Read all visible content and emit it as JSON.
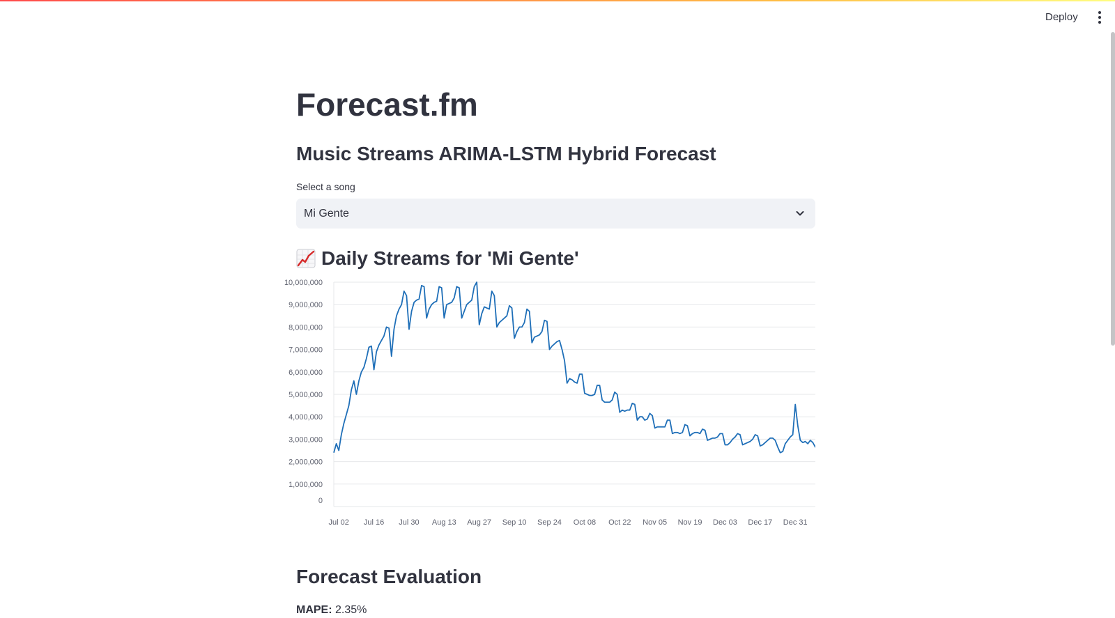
{
  "header": {
    "deploy_label": "Deploy",
    "menu_icon": "vertical-ellipsis-icon"
  },
  "app": {
    "title": "Forecast.fm",
    "subtitle": "Music Streams ARIMA-LSTM Hybrid Forecast"
  },
  "song_select": {
    "label": "Select a song",
    "value": "Mi Gente",
    "icon": "chevron-down-icon"
  },
  "chart_section": {
    "icon": "chart-increasing-icon",
    "title": "Daily Streams for 'Mi Gente'"
  },
  "evaluation": {
    "title": "Forecast Evaluation",
    "mape_label": "MAPE:",
    "mape_value": "2.35%"
  },
  "colors": {
    "line": "#1f6fb8",
    "accent_top": "#ff4b4b"
  },
  "chart_data": {
    "type": "line",
    "title": "Daily Streams for 'Mi Gente'",
    "xlabel": "",
    "ylabel": "",
    "ylim": [
      0,
      10000000
    ],
    "y_ticks": [
      0,
      1000000,
      2000000,
      3000000,
      4000000,
      5000000,
      6000000,
      7000000,
      8000000,
      9000000,
      10000000
    ],
    "y_tick_labels": [
      "0",
      "1,000,000",
      "2,000,000",
      "3,000,000",
      "4,000,000",
      "5,000,000",
      "6,000,000",
      "7,000,000",
      "8,000,000",
      "9,000,000",
      "10,000,000"
    ],
    "x_range": [
      "2017-06-30",
      "2018-01-08"
    ],
    "x_ticks": [
      "2017-07-02",
      "2017-07-16",
      "2017-07-30",
      "2017-08-13",
      "2017-08-27",
      "2017-09-10",
      "2017-09-24",
      "2017-10-08",
      "2017-10-22",
      "2017-11-05",
      "2017-11-19",
      "2017-12-03",
      "2017-12-17",
      "2017-12-31"
    ],
    "x_tick_labels": [
      "Jul 02",
      "Jul 16",
      "Jul 30",
      "Aug 13",
      "Aug 27",
      "Sep 10",
      "Sep 24",
      "Oct 08",
      "Oct 22",
      "Nov 05",
      "Nov 19",
      "Dec 03",
      "Dec 17",
      "Dec 31"
    ],
    "grid": true,
    "series": [
      {
        "points": [
          [
            "2017-06-30",
            2400000
          ],
          [
            "2017-07-01",
            2800000
          ],
          [
            "2017-07-02",
            2500000
          ],
          [
            "2017-07-03",
            3200000
          ],
          [
            "2017-07-04",
            3700000
          ],
          [
            "2017-07-05",
            4100000
          ],
          [
            "2017-07-06",
            4500000
          ],
          [
            "2017-07-07",
            5200000
          ],
          [
            "2017-07-08",
            5600000
          ],
          [
            "2017-07-09",
            5000000
          ],
          [
            "2017-07-10",
            5600000
          ],
          [
            "2017-07-11",
            6000000
          ],
          [
            "2017-07-12",
            6200000
          ],
          [
            "2017-07-13",
            6600000
          ],
          [
            "2017-07-14",
            7100000
          ],
          [
            "2017-07-15",
            7150000
          ],
          [
            "2017-07-16",
            6100000
          ],
          [
            "2017-07-17",
            6900000
          ],
          [
            "2017-07-18",
            7200000
          ],
          [
            "2017-07-19",
            7400000
          ],
          [
            "2017-07-20",
            7600000
          ],
          [
            "2017-07-21",
            8000000
          ],
          [
            "2017-07-22",
            7950000
          ],
          [
            "2017-07-23",
            6700000
          ],
          [
            "2017-07-24",
            7900000
          ],
          [
            "2017-07-25",
            8500000
          ],
          [
            "2017-07-26",
            8800000
          ],
          [
            "2017-07-27",
            9000000
          ],
          [
            "2017-07-28",
            9600000
          ],
          [
            "2017-07-29",
            9400000
          ],
          [
            "2017-07-30",
            7900000
          ],
          [
            "2017-07-31",
            8700000
          ],
          [
            "2017-08-01",
            9100000
          ],
          [
            "2017-08-02",
            9200000
          ],
          [
            "2017-08-03",
            9250000
          ],
          [
            "2017-08-04",
            9850000
          ],
          [
            "2017-08-05",
            9800000
          ],
          [
            "2017-08-06",
            8400000
          ],
          [
            "2017-08-07",
            8800000
          ],
          [
            "2017-08-08",
            9000000
          ],
          [
            "2017-08-09",
            9100000
          ],
          [
            "2017-08-10",
            9150000
          ],
          [
            "2017-08-11",
            9800000
          ],
          [
            "2017-08-12",
            9750000
          ],
          [
            "2017-08-13",
            8400000
          ],
          [
            "2017-08-14",
            9000000
          ],
          [
            "2017-08-15",
            9050000
          ],
          [
            "2017-08-16",
            9100000
          ],
          [
            "2017-08-17",
            9300000
          ],
          [
            "2017-08-18",
            9800000
          ],
          [
            "2017-08-19",
            9750000
          ],
          [
            "2017-08-20",
            8400000
          ],
          [
            "2017-08-21",
            8700000
          ],
          [
            "2017-08-22",
            9000000
          ],
          [
            "2017-08-23",
            9100000
          ],
          [
            "2017-08-24",
            9200000
          ],
          [
            "2017-08-25",
            9800000
          ],
          [
            "2017-08-26",
            10000000
          ],
          [
            "2017-08-27",
            8100000
          ],
          [
            "2017-08-28",
            8600000
          ],
          [
            "2017-08-29",
            8900000
          ],
          [
            "2017-08-30",
            8850000
          ],
          [
            "2017-08-31",
            8800000
          ],
          [
            "2017-09-01",
            9600000
          ],
          [
            "2017-09-02",
            9400000
          ],
          [
            "2017-09-03",
            8000000
          ],
          [
            "2017-09-04",
            8200000
          ],
          [
            "2017-09-05",
            8300000
          ],
          [
            "2017-09-06",
            8400000
          ],
          [
            "2017-09-07",
            8500000
          ],
          [
            "2017-09-08",
            8950000
          ],
          [
            "2017-09-09",
            8850000
          ],
          [
            "2017-09-10",
            7500000
          ],
          [
            "2017-09-11",
            7800000
          ],
          [
            "2017-09-12",
            8000000
          ],
          [
            "2017-09-13",
            8000000
          ],
          [
            "2017-09-14",
            8200000
          ],
          [
            "2017-09-15",
            8800000
          ],
          [
            "2017-09-16",
            8700000
          ],
          [
            "2017-09-17",
            7300000
          ],
          [
            "2017-09-18",
            7550000
          ],
          [
            "2017-09-19",
            7600000
          ],
          [
            "2017-09-20",
            7650000
          ],
          [
            "2017-09-21",
            7800000
          ],
          [
            "2017-09-22",
            8300000
          ],
          [
            "2017-09-23",
            8250000
          ],
          [
            "2017-09-24",
            7000000
          ],
          [
            "2017-09-25",
            7150000
          ],
          [
            "2017-09-26",
            7250000
          ],
          [
            "2017-09-27",
            7350000
          ],
          [
            "2017-09-28",
            7400000
          ],
          [
            "2017-09-29",
            7000000
          ],
          [
            "2017-09-30",
            6500000
          ],
          [
            "2017-10-01",
            5500000
          ],
          [
            "2017-10-02",
            5700000
          ],
          [
            "2017-10-03",
            5650000
          ],
          [
            "2017-10-04",
            5550000
          ],
          [
            "2017-10-05",
            5500000
          ],
          [
            "2017-10-06",
            5900000
          ],
          [
            "2017-10-07",
            5900000
          ],
          [
            "2017-10-08",
            5050000
          ],
          [
            "2017-10-09",
            5000000
          ],
          [
            "2017-10-10",
            4950000
          ],
          [
            "2017-10-11",
            4950000
          ],
          [
            "2017-10-12",
            5000000
          ],
          [
            "2017-10-13",
            5400000
          ],
          [
            "2017-10-14",
            5400000
          ],
          [
            "2017-10-15",
            4750000
          ],
          [
            "2017-10-16",
            4650000
          ],
          [
            "2017-10-17",
            4650000
          ],
          [
            "2017-10-18",
            4650000
          ],
          [
            "2017-10-19",
            4750000
          ],
          [
            "2017-10-20",
            5100000
          ],
          [
            "2017-10-21",
            5000000
          ],
          [
            "2017-10-22",
            4200000
          ],
          [
            "2017-10-23",
            4300000
          ],
          [
            "2017-10-24",
            4250000
          ],
          [
            "2017-10-25",
            4300000
          ],
          [
            "2017-10-26",
            4300000
          ],
          [
            "2017-10-27",
            4600000
          ],
          [
            "2017-10-28",
            4550000
          ],
          [
            "2017-10-29",
            3850000
          ],
          [
            "2017-10-30",
            4000000
          ],
          [
            "2017-10-31",
            4000000
          ],
          [
            "2017-11-01",
            3850000
          ],
          [
            "2017-11-02",
            3900000
          ],
          [
            "2017-11-03",
            4150000
          ],
          [
            "2017-11-04",
            4050000
          ],
          [
            "2017-11-05",
            3500000
          ],
          [
            "2017-11-06",
            3550000
          ],
          [
            "2017-11-07",
            3550000
          ],
          [
            "2017-11-08",
            3550000
          ],
          [
            "2017-11-09",
            3550000
          ],
          [
            "2017-11-10",
            3850000
          ],
          [
            "2017-11-11",
            3850000
          ],
          [
            "2017-11-12",
            3250000
          ],
          [
            "2017-11-13",
            3300000
          ],
          [
            "2017-11-14",
            3300000
          ],
          [
            "2017-11-15",
            3250000
          ],
          [
            "2017-11-16",
            3300000
          ],
          [
            "2017-11-17",
            3650000
          ],
          [
            "2017-11-18",
            3600000
          ],
          [
            "2017-11-19",
            3150000
          ],
          [
            "2017-11-20",
            3250000
          ],
          [
            "2017-11-21",
            3300000
          ],
          [
            "2017-11-22",
            3300000
          ],
          [
            "2017-11-23",
            3250000
          ],
          [
            "2017-11-24",
            3450000
          ],
          [
            "2017-11-25",
            3400000
          ],
          [
            "2017-11-26",
            2950000
          ],
          [
            "2017-11-27",
            3000000
          ],
          [
            "2017-11-28",
            3050000
          ],
          [
            "2017-11-29",
            3050000
          ],
          [
            "2017-11-30",
            3100000
          ],
          [
            "2017-12-01",
            3250000
          ],
          [
            "2017-12-02",
            3250000
          ],
          [
            "2017-12-03",
            2750000
          ],
          [
            "2017-12-04",
            2750000
          ],
          [
            "2017-12-05",
            2850000
          ],
          [
            "2017-12-06",
            3000000
          ],
          [
            "2017-12-07",
            3100000
          ],
          [
            "2017-12-08",
            3250000
          ],
          [
            "2017-12-09",
            3200000
          ],
          [
            "2017-12-10",
            2750000
          ],
          [
            "2017-12-11",
            2800000
          ],
          [
            "2017-12-12",
            2850000
          ],
          [
            "2017-12-13",
            2900000
          ],
          [
            "2017-12-14",
            3000000
          ],
          [
            "2017-12-15",
            3200000
          ],
          [
            "2017-12-16",
            3150000
          ],
          [
            "2017-12-17",
            2700000
          ],
          [
            "2017-12-18",
            2750000
          ],
          [
            "2017-12-19",
            2850000
          ],
          [
            "2017-12-20",
            2950000
          ],
          [
            "2017-12-21",
            3050000
          ],
          [
            "2017-12-22",
            3050000
          ],
          [
            "2017-12-23",
            2950000
          ],
          [
            "2017-12-24",
            2650000
          ],
          [
            "2017-12-25",
            2400000
          ],
          [
            "2017-12-26",
            2450000
          ],
          [
            "2017-12-27",
            2800000
          ],
          [
            "2017-12-28",
            2950000
          ],
          [
            "2017-12-29",
            3100000
          ],
          [
            "2017-12-30",
            3200000
          ],
          [
            "2017-12-31",
            4550000
          ],
          [
            "2018-01-01",
            3600000
          ],
          [
            "2018-01-02",
            2950000
          ],
          [
            "2018-01-03",
            2850000
          ],
          [
            "2018-01-04",
            2900000
          ],
          [
            "2018-01-05",
            2800000
          ],
          [
            "2018-01-06",
            2950000
          ],
          [
            "2018-01-07",
            2850000
          ],
          [
            "2018-01-08",
            2650000
          ],
          [
            "2018-01-09",
            2650000
          ]
        ]
      }
    ]
  }
}
